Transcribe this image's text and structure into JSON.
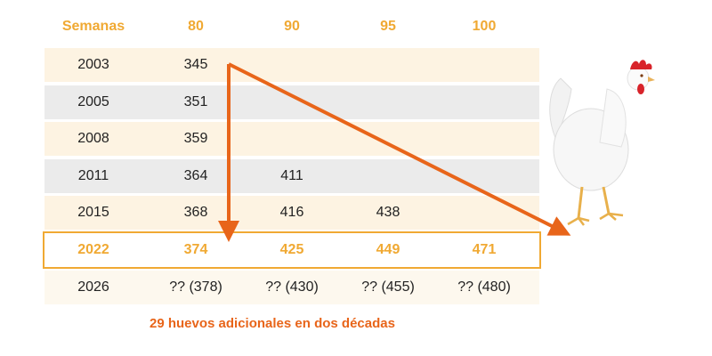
{
  "table": {
    "header": [
      "Semanas",
      "80",
      "90",
      "95",
      "100"
    ],
    "rows": [
      [
        "2003",
        "345",
        "",
        "",
        ""
      ],
      [
        "2005",
        "351",
        "",
        "",
        ""
      ],
      [
        "2008",
        "359",
        "",
        "",
        ""
      ],
      [
        "2011",
        "364",
        "411",
        "",
        ""
      ],
      [
        "2015",
        "368",
        "416",
        "438",
        ""
      ],
      [
        "2022",
        "374",
        "425",
        "449",
        "471"
      ],
      [
        "2026",
        "?? (378)",
        "?? (430)",
        "?? (455)",
        "?? (480)"
      ]
    ]
  },
  "caption": "29 huevos adicionales en dos décadas",
  "colors": {
    "accent": "#f0a933",
    "arrow": "#e8651a",
    "row_light": "#fdf3e2",
    "row_gray": "#ebebeb"
  },
  "icons": {
    "illustration": "white-hen-icon"
  }
}
